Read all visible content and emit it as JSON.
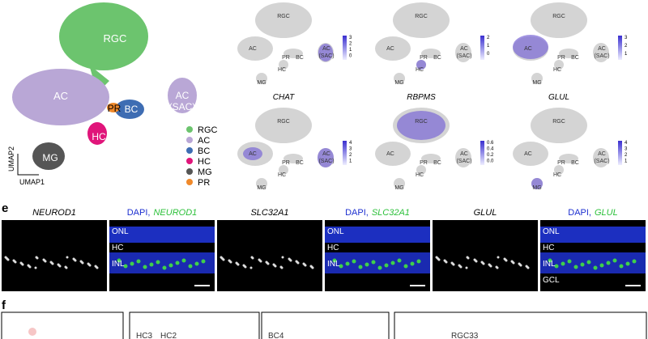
{
  "umap": {
    "labels": [
      "RGC",
      "AC",
      "AC",
      "(SAC)",
      "PR",
      "BC",
      "HC",
      "MG"
    ],
    "axis_y": "UMAP2",
    "axis_x": "UMAP1",
    "legend": [
      {
        "name": "RGC",
        "color": "#6cc46e"
      },
      {
        "name": "AC",
        "color": "#b9a7d6"
      },
      {
        "name": "BC",
        "color": "#3e6db3"
      },
      {
        "name": "HC",
        "color": "#e0157a"
      },
      {
        "name": "MG",
        "color": "#555555"
      },
      {
        "name": "PR",
        "color": "#f0892a"
      }
    ]
  },
  "features": [
    {
      "labels": [
        "RGC",
        "AC",
        "PR",
        "BC",
        "AC",
        "(SAC)",
        "HC",
        "MG"
      ],
      "ticks": [
        "3",
        "2",
        "1",
        "0"
      ]
    },
    {
      "labels": [
        "RGC",
        "AC",
        "PR",
        "BC",
        "AC",
        "(SAC)",
        "HC",
        "MG"
      ],
      "ticks": [
        "2",
        "1",
        "0"
      ]
    },
    {
      "labels": [
        "RGC",
        "AC",
        "PR",
        "BC",
        "AC",
        "(SAC)",
        "HC",
        "MG"
      ],
      "ticks": [
        "3",
        "2",
        "1"
      ]
    },
    {
      "title": "CHAT",
      "labels": [
        "RGC",
        "AC",
        "PR",
        "BC",
        "AC",
        "(SAC)",
        "HC",
        "MG"
      ],
      "ticks": [
        "4",
        "3",
        "2",
        "1"
      ]
    },
    {
      "title": "RBPMS",
      "labels": [
        "RGC",
        "AC",
        "PR",
        "BC",
        "AC",
        "(SAC)",
        "HC",
        "MG"
      ],
      "ticks": [
        "0.6",
        "0.4",
        "0.2",
        "0.0"
      ]
    },
    {
      "title": "GLUL",
      "labels": [
        "RGC",
        "AC",
        "PR",
        "BC",
        "AC",
        "(SAC)",
        "HC",
        "MG"
      ],
      "ticks": [
        "4",
        "3",
        "2",
        "1"
      ]
    }
  ],
  "panel_e": {
    "label": "e",
    "images": [
      {
        "title": "NEUROD1"
      },
      {
        "prefix": "DAPI,",
        "gene": "NEUROD1",
        "layers": [
          "ONL",
          "HC",
          "INL"
        ]
      },
      {
        "title": "SLC32A1"
      },
      {
        "prefix": "DAPI,",
        "gene": "SLC32A1",
        "layers": [
          "ONL",
          "HC",
          "INL"
        ]
      },
      {
        "title": "GLUL"
      },
      {
        "prefix": "DAPI,",
        "gene": "GLUL",
        "layers": [
          "ONL",
          "HC",
          "INL",
          "GCL"
        ]
      }
    ]
  },
  "panel_f": {
    "label": "f",
    "boxes": [
      {
        "labels": []
      },
      {
        "labels": [
          "HC3",
          "HC2"
        ]
      },
      {
        "labels": [
          "BC4"
        ]
      },
      {
        "labels": [
          "RGC33"
        ]
      }
    ]
  }
}
